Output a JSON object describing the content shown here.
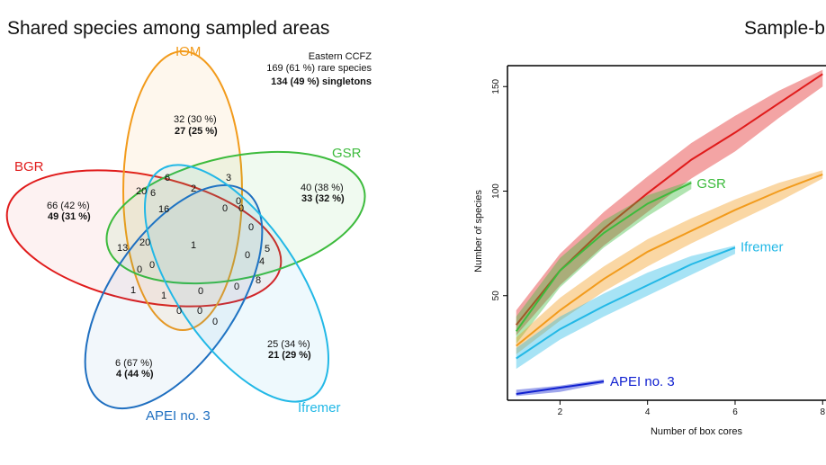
{
  "colors": {
    "BGR": "#e01b1b",
    "IOM": "#f29b1c",
    "GSR": "#3dbb3d",
    "APEI no. 3": "#1f6fc0",
    "Ifremer": "#22b8e6",
    "APEI no. 3 curve": "#1020d0"
  },
  "chart_data": [
    {
      "type": "venn",
      "title": "Shared species among sampled areas",
      "sets": [
        {
          "name": "IOM",
          "text": "32 (30 %)",
          "bold": "27 (25 %)"
        },
        {
          "name": "GSR",
          "text": "40 (38 %)",
          "bold": "33 (32 %)"
        },
        {
          "name": "BGR",
          "text": "66 (42 %)",
          "bold": "49 (31 %)"
        },
        {
          "name": "Ifremer",
          "text": "25 (34 %)",
          "bold": "21 (29 %)"
        },
        {
          "name": "APEI no. 3",
          "text": "6 (67 %)",
          "bold": "4 (44 %)"
        }
      ],
      "intersections": [
        "6",
        "3",
        "20",
        "6",
        "2",
        "16",
        "0",
        "0",
        "0",
        "13",
        "20",
        "1",
        "0",
        "5",
        "0",
        "0",
        "4",
        "0",
        "8",
        "1",
        "1",
        "0",
        "0",
        "0",
        "0",
        "0"
      ],
      "summary": {
        "line1": "Eastern CCFZ",
        "line2": "169 (61 %) rare species",
        "line3": "134 (49 %) singletons"
      }
    },
    {
      "type": "line",
      "title": "Sample-b",
      "xlabel": "Number of box cores",
      "ylabel": "Number of species",
      "xlim": [
        0.8,
        8.2
      ],
      "ylim": [
        0,
        160
      ],
      "xticks": [
        "2",
        "4",
        "6",
        "8"
      ],
      "yticks": [
        "50",
        "100",
        "150"
      ],
      "series": [
        {
          "name": "BGR",
          "x": [
            1,
            2,
            3,
            4,
            5,
            6,
            7,
            8
          ],
          "y": [
            36,
            62,
            82,
            99,
            115,
            128,
            142,
            156
          ],
          "lo": [
            31,
            55,
            74,
            90,
            106,
            119,
            135,
            150
          ],
          "hi": [
            43,
            70,
            90,
            107,
            123,
            136,
            148,
            158
          ]
        },
        {
          "name": "GSR",
          "x": [
            1,
            2,
            3,
            4,
            5
          ],
          "y": [
            33,
            62,
            80,
            94,
            104
          ],
          "lo": [
            27,
            54,
            73,
            88,
            101
          ],
          "hi": [
            40,
            68,
            86,
            98,
            105
          ]
        },
        {
          "name": "IOM",
          "x": [
            1,
            2,
            3,
            4,
            5,
            6,
            7,
            8
          ],
          "y": [
            26,
            43,
            58,
            71,
            81,
            91,
            100,
            108
          ],
          "lo": [
            22,
            38,
            52,
            64,
            75,
            85,
            95,
            106
          ],
          "hi": [
            30,
            49,
            64,
            77,
            87,
            96,
            104,
            110
          ]
        },
        {
          "name": "Ifremer",
          "x": [
            1,
            2,
            3,
            4,
            5,
            6
          ],
          "y": [
            20,
            34,
            45,
            55,
            65,
            73
          ],
          "lo": [
            15,
            29,
            40,
            50,
            60,
            70
          ],
          "hi": [
            25,
            40,
            51,
            61,
            69,
            74
          ]
        },
        {
          "name": "APEI no. 3",
          "x": [
            1,
            2,
            3
          ],
          "y": [
            3,
            6,
            9
          ],
          "lo": [
            2,
            4,
            8
          ],
          "hi": [
            5,
            7,
            10
          ]
        }
      ],
      "grid": false,
      "legend": "none"
    }
  ]
}
